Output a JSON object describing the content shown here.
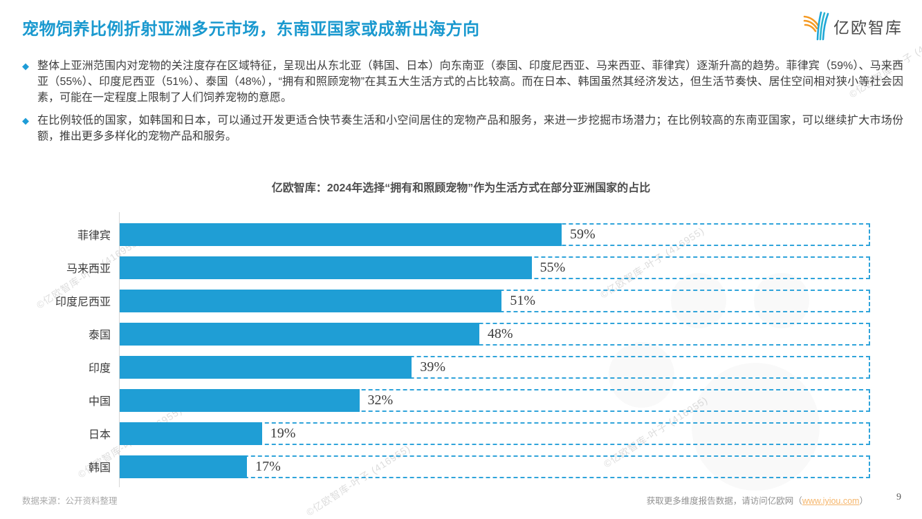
{
  "header": {
    "title": "宠物饲养比例折射亚洲多元市场，东南亚国家或成新出海方向",
    "logo_text": "亿欧智库"
  },
  "bullets": [
    {
      "marker": "◆",
      "text": "整体上亚洲范围内对宠物的关注度存在区域特征，呈现出从东北亚（韩国、日本）向东南亚（泰国、印度尼西亚、马来西亚、菲律宾）逐渐升高的趋势。菲律宾（59%）、马来西亚（55%）、印度尼西亚（51%）、泰国（48%），“拥有和照顾宠物”在其五大生活方式的占比较高。而在日本、韩国虽然其经济发达，但生活节奏快、居住空间相对狭小等社会因素，可能在一定程度上限制了人们饲养宠物的意愿。"
    },
    {
      "marker": "◆",
      "text": "在比例较低的国家，如韩国和日本，可以通过开发更适合快节奏生活和小空间居住的宠物产品和服务，来进一步挖掘市场潜力；在比例较高的东南亚国家，可以继续扩大市场份额，推出更多多样化的宠物产品和服务。"
    }
  ],
  "chart_data": {
    "type": "bar",
    "orientation": "horizontal",
    "title": "亿欧智库：2024年选择“拥有和照顾宠物”作为生活方式在部分亚洲国家的占比",
    "categories": [
      "菲律宾",
      "马来西亚",
      "印度尼西亚",
      "泰国",
      "印度",
      "中国",
      "日本",
      "韩国"
    ],
    "values": [
      59,
      55,
      51,
      48,
      39,
      32,
      19,
      17
    ],
    "value_labels": [
      "59%",
      "55%",
      "51%",
      "48%",
      "39%",
      "32%",
      "19%",
      "17%"
    ],
    "xlim": [
      0,
      100
    ],
    "grid": false,
    "legend": "none",
    "bar_color": "#1f9ed5",
    "track_border_color": "#2ea3da"
  },
  "footer": {
    "source": "数据来源：公开资料整理",
    "more_prefix": "获取更多维度报告数据，请访问亿欧网（",
    "link": "www.iyiou.com",
    "more_suffix": "）",
    "page_number": "9"
  },
  "watermark": {
    "text": "©亿欧智库-叶子 (416955)"
  },
  "colors": {
    "title_blue": "#1a99cf",
    "bar_blue": "#1f9ed5",
    "dash_blue": "#2ea3da",
    "link_orange": "#f5b56a",
    "logo_orange": "#f59a23",
    "logo_teal": "#1fa6d8"
  }
}
